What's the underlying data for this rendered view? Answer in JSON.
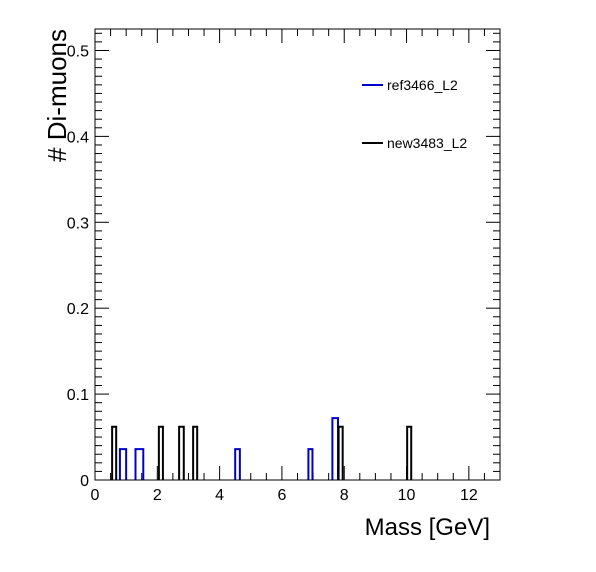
{
  "chart_data": {
    "type": "histogram",
    "xlabel": "Mass [GeV]",
    "ylabel": "# Di-muons",
    "xlim": [
      0,
      13
    ],
    "ylim": [
      0,
      0.525
    ],
    "x_ticks": [
      "0",
      "2",
      "4",
      "6",
      "8",
      "10",
      "12"
    ],
    "y_ticks": [
      "0",
      "0.1",
      "0.2",
      "0.3",
      "0.4",
      "0.5"
    ],
    "legend_position": "top-right",
    "series": [
      {
        "name": "ref3466_L2",
        "color": "#0000cc",
        "bins": [
          {
            "x0": 0.8,
            "x1": 1.0,
            "y": 0.036
          },
          {
            "x0": 1.3,
            "x1": 1.55,
            "y": 0.036
          },
          {
            "x0": 4.5,
            "x1": 4.65,
            "y": 0.036
          },
          {
            "x0": 6.85,
            "x1": 6.98,
            "y": 0.036
          },
          {
            "x0": 7.62,
            "x1": 7.8,
            "y": 0.072
          }
        ]
      },
      {
        "name": "new3483_L2",
        "color": "#000000",
        "bins": [
          {
            "x0": 0.55,
            "x1": 0.68,
            "y": 0.062
          },
          {
            "x0": 2.05,
            "x1": 2.18,
            "y": 0.062
          },
          {
            "x0": 2.7,
            "x1": 2.85,
            "y": 0.062
          },
          {
            "x0": 3.15,
            "x1": 3.28,
            "y": 0.062
          },
          {
            "x0": 7.82,
            "x1": 7.95,
            "y": 0.062
          },
          {
            "x0": 10.02,
            "x1": 10.15,
            "y": 0.062
          }
        ]
      }
    ]
  }
}
